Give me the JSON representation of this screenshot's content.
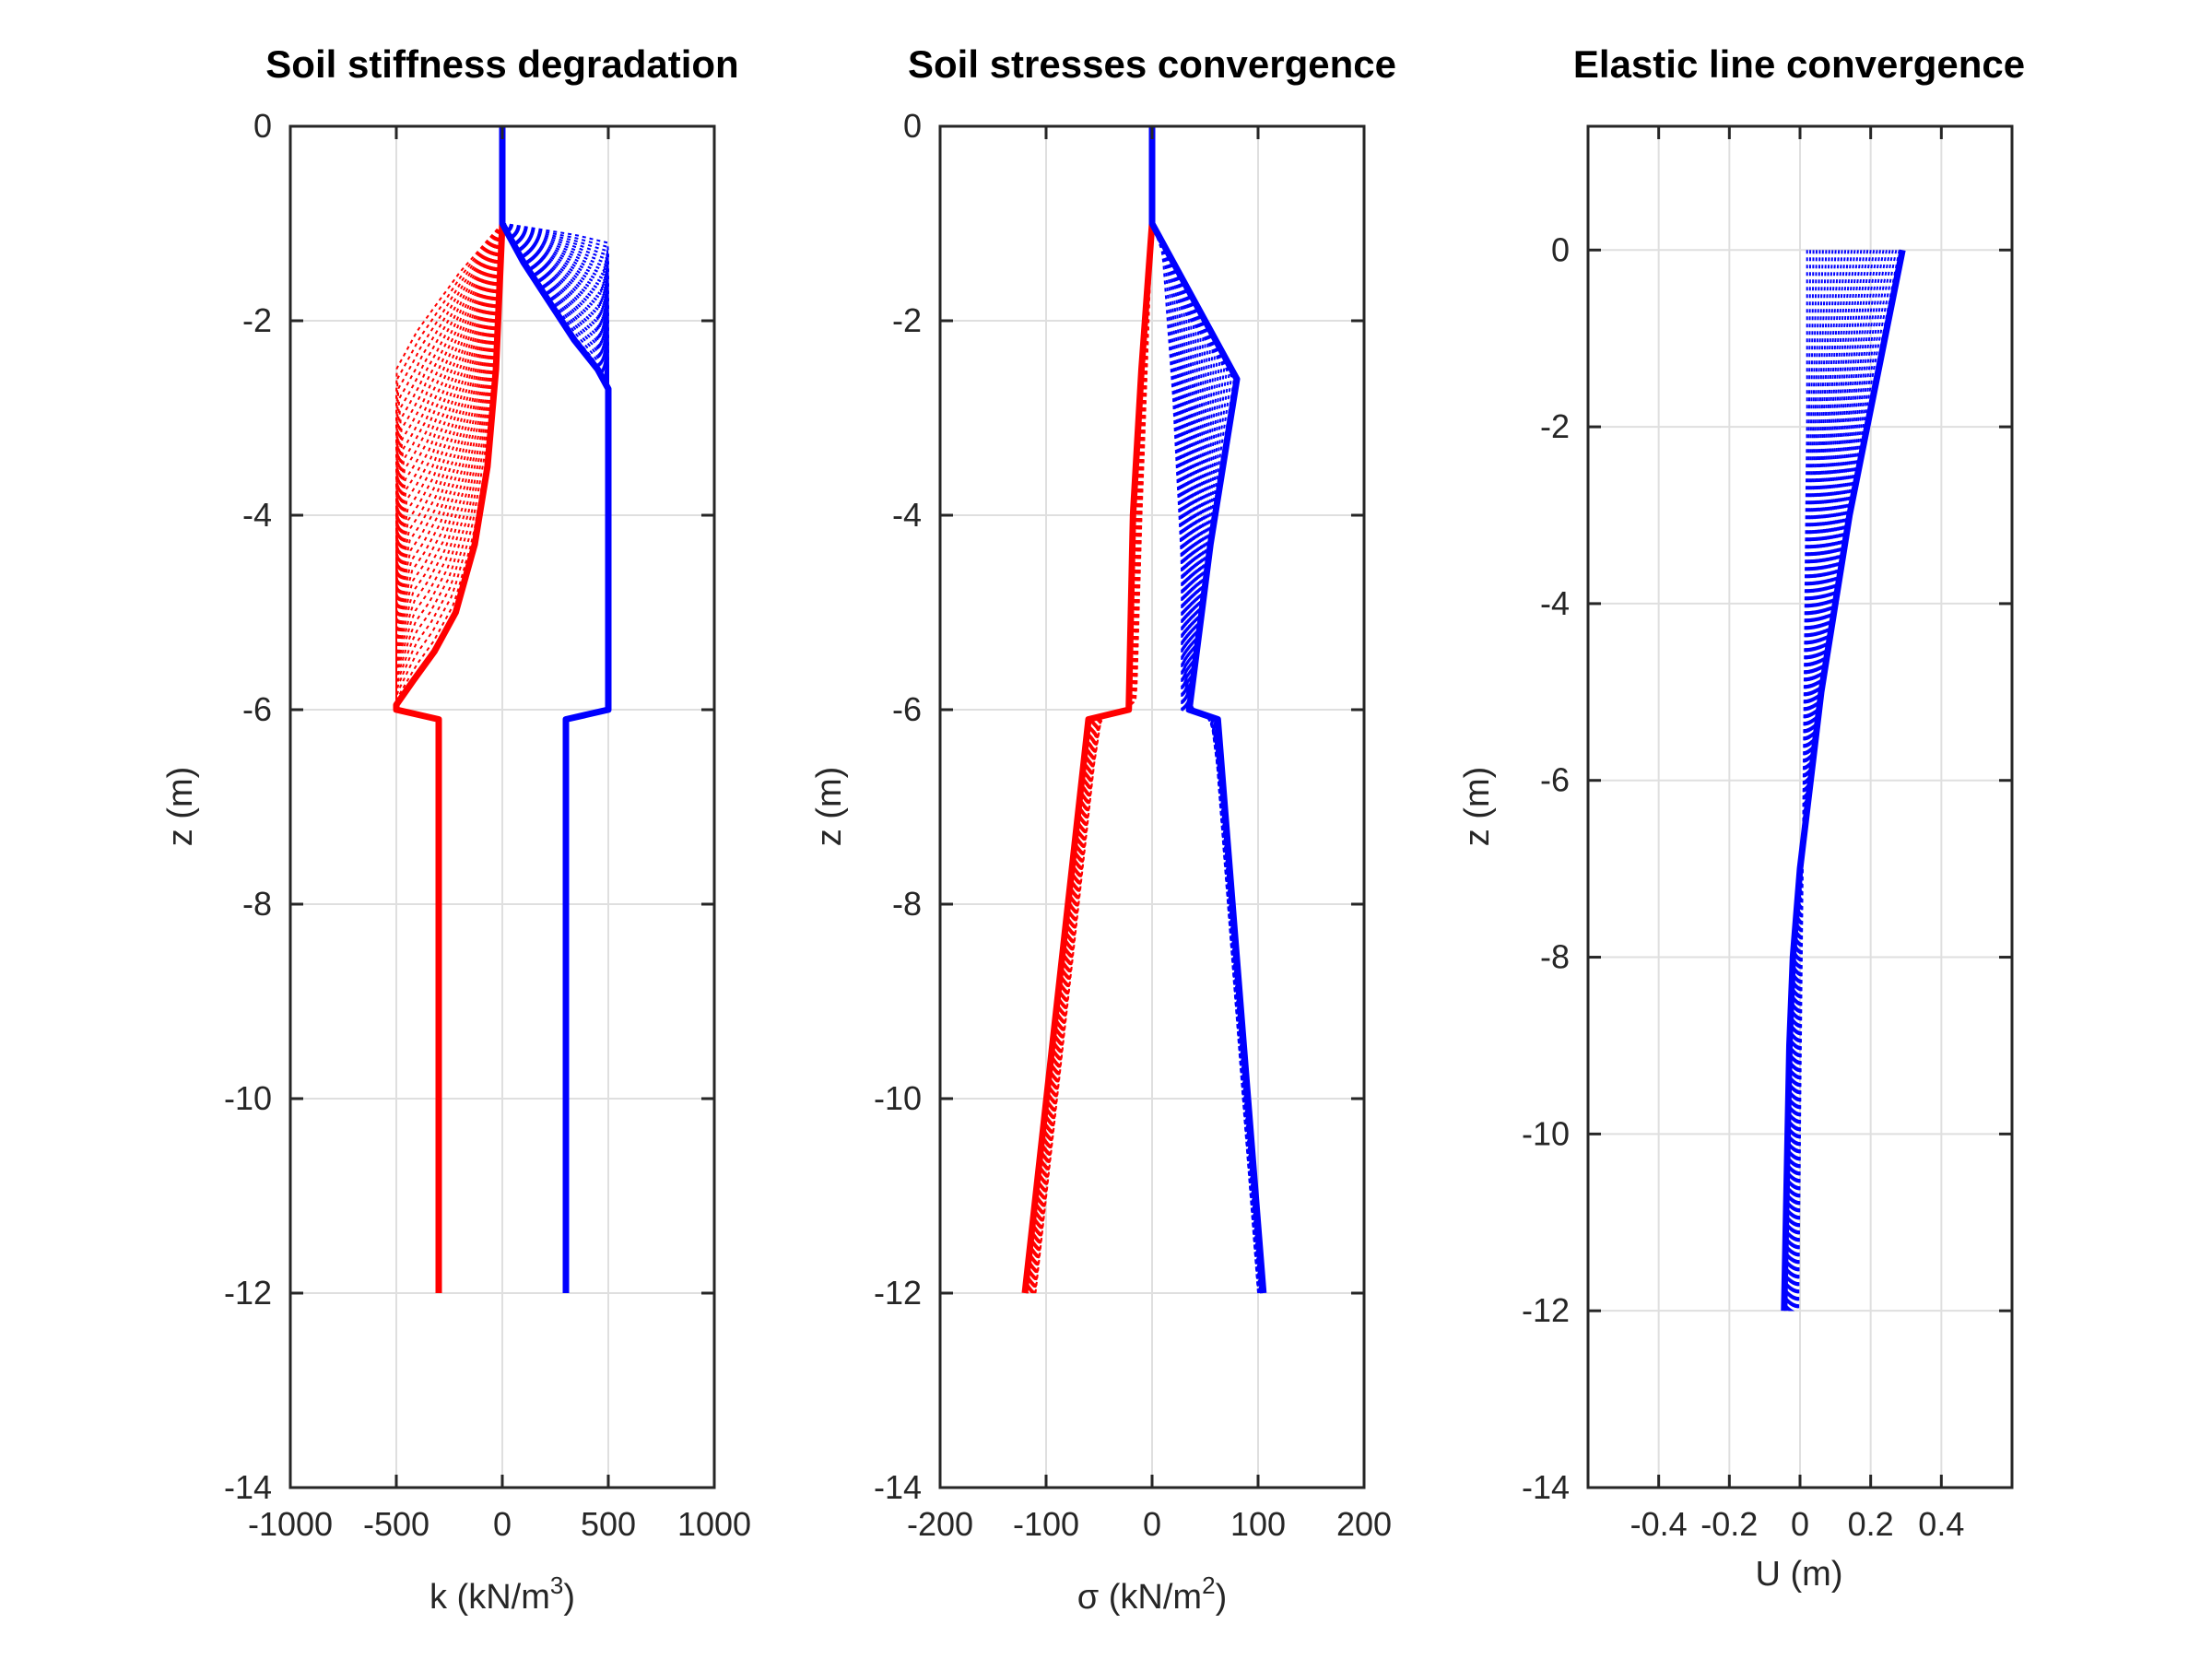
{
  "chart_data": [
    {
      "type": "line",
      "title": "Soil stiffness degradation",
      "xlabel": "k (kN/m",
      "xlabel_sup": "3",
      "xlabel_end": ")",
      "ylabel": "z (m)",
      "xlim": [
        -1000,
        1000
      ],
      "ylim": [
        -14,
        0
      ],
      "xticks": [
        -1000,
        -500,
        0,
        500,
        1000
      ],
      "xtick_labels": [
        "-1000",
        "-500",
        "0",
        "500",
        "1000"
      ],
      "yticks": [
        0,
        -2,
        -4,
        -6,
        -8,
        -10,
        -12,
        -14
      ],
      "ytick_labels": [
        "0",
        "-2",
        "-4",
        "-6",
        "-8",
        "-10",
        "-12",
        "-14"
      ],
      "grid": true,
      "iterations": 30,
      "colors": {
        "active": "#ff0000",
        "passive": "#0000ff"
      },
      "series": [
        {
          "role": "active-final",
          "color": "#ff0000",
          "points": [
            [
              0,
              0
            ],
            [
              0,
              -1
            ],
            [
              -10,
              -1.5
            ],
            [
              -30,
              -2.5
            ],
            [
              -70,
              -3.5
            ],
            [
              -130,
              -4.3
            ],
            [
              -220,
              -5
            ],
            [
              -320,
              -5.4
            ],
            [
              -420,
              -5.7
            ],
            [
              -500,
              -5.95
            ],
            [
              -500,
              -6.0
            ],
            [
              -300,
              -6.1
            ],
            [
              -300,
              -12
            ]
          ]
        },
        {
          "role": "active-initial",
          "color": "#ff0000",
          "points": [
            [
              0,
              -1
            ],
            [
              -200,
              -1.5
            ],
            [
              -400,
              -2.1
            ],
            [
              -500,
              -2.5
            ],
            [
              -500,
              -6.0
            ]
          ]
        },
        {
          "role": "passive-final",
          "color": "#0000ff",
          "points": [
            [
              0,
              0
            ],
            [
              0,
              -1
            ],
            [
              100,
              -1.4
            ],
            [
              220,
              -1.8
            ],
            [
              340,
              -2.2
            ],
            [
              450,
              -2.5
            ],
            [
              500,
              -2.7
            ],
            [
              500,
              -6.0
            ],
            [
              300,
              -6.1
            ],
            [
              300,
              -12
            ]
          ]
        },
        {
          "role": "passive-initial",
          "color": "#0000ff",
          "points": [
            [
              0,
              -1
            ],
            [
              150,
              -1.05
            ],
            [
              350,
              -1.12
            ],
            [
              500,
              -1.2
            ],
            [
              500,
              -2.7
            ]
          ]
        }
      ]
    },
    {
      "type": "line",
      "title": "Soil stresses convergence",
      "xlabel": "σ (kN/m",
      "xlabel_sup": "2",
      "xlabel_end": ")",
      "ylabel": "z (m)",
      "xlim": [
        -200,
        200
      ],
      "ylim": [
        -14,
        0
      ],
      "xticks": [
        -200,
        -100,
        0,
        100,
        200
      ],
      "xtick_labels": [
        "-200",
        "-100",
        "0",
        "100",
        "200"
      ],
      "yticks": [
        0,
        -2,
        -4,
        -6,
        -8,
        -10,
        -12,
        -14
      ],
      "ytick_labels": [
        "0",
        "-2",
        "-4",
        "-6",
        "-8",
        "-10",
        "-12",
        "-14"
      ],
      "grid": true,
      "iterations": 30,
      "colors": {
        "active": "#ff0000",
        "passive": "#0000ff"
      },
      "series": [
        {
          "role": "active-final",
          "color": "#ff0000",
          "points": [
            [
              0,
              0
            ],
            [
              0,
              -1
            ],
            [
              -10,
              -2.5
            ],
            [
              -18,
              -4
            ],
            [
              -22,
              -6
            ],
            [
              -60,
              -6.1
            ],
            [
              -120,
              -12
            ]
          ]
        },
        {
          "role": "active-initial",
          "color": "#ff0000",
          "points": [
            [
              0,
              -1
            ],
            [
              -5,
              -2.5
            ],
            [
              -10,
              -4
            ],
            [
              -15,
              -5.9
            ],
            [
              -25,
              -6.0
            ],
            [
              -50,
              -6.1
            ],
            [
              -110,
              -12
            ]
          ]
        },
        {
          "role": "passive-final",
          "color": "#0000ff",
          "points": [
            [
              0,
              0
            ],
            [
              0,
              -1
            ],
            [
              80,
              -2.6
            ],
            [
              55,
              -4.3
            ],
            [
              35,
              -6.0
            ],
            [
              62,
              -6.1
            ],
            [
              105,
              -12
            ]
          ]
        },
        {
          "role": "passive-initial",
          "color": "#0000ff",
          "points": [
            [
              0,
              -1
            ],
            [
              10,
              -1.3
            ],
            [
              20,
              -2.8
            ],
            [
              28,
              -4.5
            ],
            [
              28,
              -6.0
            ],
            [
              58,
              -6.1
            ],
            [
              100,
              -12
            ]
          ]
        }
      ]
    },
    {
      "type": "line",
      "title": "Elastic line convergence",
      "xlabel": "U (m)",
      "ylabel": "z (m)",
      "xlim": [
        -0.6,
        0.6
      ],
      "ylim": [
        -14,
        1.4
      ],
      "xticks": [
        -0.4,
        -0.2,
        0,
        0.2,
        0.4
      ],
      "xtick_labels": [
        "-0.4",
        "-0.2",
        "0",
        "0.2",
        "0.4"
      ],
      "yticks": [
        0,
        -2,
        -4,
        -6,
        -8,
        -10,
        -12,
        -14
      ],
      "ytick_labels": [
        "0",
        "-2",
        "-4",
        "-6",
        "-8",
        "-10",
        "-12",
        "-14"
      ],
      "grid": true,
      "iterations": 30,
      "colors": {
        "deflection": "#0000ff"
      },
      "series": [
        {
          "role": "deflection-final",
          "color": "#0000ff",
          "points": [
            [
              0.29,
              0
            ],
            [
              0.24,
              -1
            ],
            [
              0.19,
              -2
            ],
            [
              0.14,
              -3
            ],
            [
              0.1,
              -4
            ],
            [
              0.06,
              -5
            ],
            [
              0.03,
              -6
            ],
            [
              0.0,
              -7
            ],
            [
              -0.02,
              -8
            ],
            [
              -0.03,
              -9
            ],
            [
              -0.035,
              -10
            ],
            [
              -0.04,
              -11
            ],
            [
              -0.045,
              -12
            ]
          ]
        },
        {
          "role": "deflection-initial",
          "color": "#0000ff",
          "points": [
            [
              0.02,
              0
            ],
            [
              0.02,
              -2
            ],
            [
              0.015,
              -4
            ],
            [
              0.01,
              -6
            ],
            [
              0.005,
              -8
            ],
            [
              0.0,
              -10
            ],
            [
              -0.005,
              -12
            ]
          ]
        }
      ]
    }
  ]
}
